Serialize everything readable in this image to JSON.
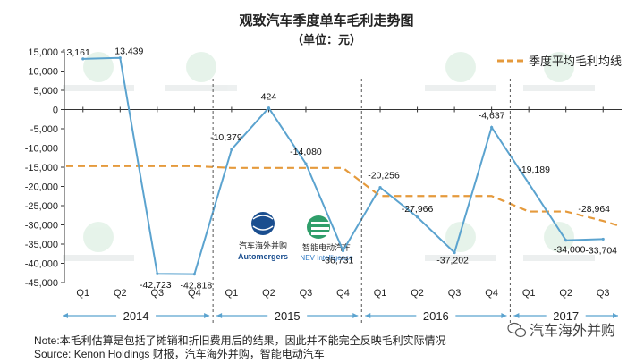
{
  "chart_data": {
    "type": "line",
    "title": "观致汽车季度单车毛利走势图",
    "subtitle": "（单位：元）",
    "ylim": [
      -45000,
      15000
    ],
    "yticks": [
      15000,
      10000,
      5000,
      0,
      -5000,
      -10000,
      -15000,
      -20000,
      -25000,
      -30000,
      -35000,
      -40000,
      -45000
    ],
    "ytick_labels": [
      "15,000",
      "10,000",
      "5,000",
      "0",
      "-5,000",
      "-10,000",
      "-15,000",
      "-20,000",
      "-25,000",
      "-30,000",
      "-35,000",
      "-40,000",
      "-45,000"
    ],
    "categories": [
      "Q1",
      "Q2",
      "Q3",
      "Q4",
      "Q1",
      "Q2",
      "Q3",
      "Q4",
      "Q1",
      "Q2",
      "Q3",
      "Q4",
      "Q1",
      "Q2",
      "Q3"
    ],
    "years": [
      "2014",
      "2015",
      "2016",
      "2017"
    ],
    "series": [
      {
        "values": [
          13161,
          13439,
          -42723,
          -42818,
          -10379,
          424,
          -14080,
          -36731,
          -20256,
          -27966,
          -37202,
          -4637,
          -19189,
          -34000,
          -33704
        ],
        "labels": [
          "13,161",
          "13,439",
          "-42,723",
          "-42,818",
          "-10,379",
          "424",
          "-14,080",
          "-36,731",
          "-20,256",
          "-27,966",
          "-37,202",
          "-4,637",
          "-19,189",
          "-34,000",
          "-33,704"
        ],
        "color": "#5ba3cf"
      },
      {
        "name": "季度平均毛利均线",
        "values": [
          -14729,
          -14729,
          -14729,
          -14729,
          -15192,
          -15192,
          -15192,
          -15192,
          -22505,
          -22505,
          -22505,
          -22505,
          -26526,
          -26526,
          -28964
        ],
        "labels": [
          "",
          "",
          "",
          "",
          "",
          "",
          "",
          "",
          "",
          "",
          "",
          "",
          "",
          "",
          "-28,964"
        ],
        "color": "#e59a3c",
        "style": "dashed"
      }
    ],
    "legend_position": "top-right",
    "grid": false
  },
  "logos": {
    "automergers_cn": "汽车海外并购",
    "automergers_en": "Automergers",
    "nev_cn": "智能电动汽车",
    "nev_en": "NEV Intelligence"
  },
  "notes": {
    "note": "Note:本毛利估算是包括了摊销和折旧费用后的结果，因此并不能完全反映毛利实际情况",
    "source": "Source: Kenon Holdings 财报，汽车海外并购，智能电动汽车"
  },
  "wechat_label": "汽车海外并购",
  "colors": {
    "line": "#5ba3cf",
    "average": "#e59a3c",
    "axis": "#333333"
  }
}
